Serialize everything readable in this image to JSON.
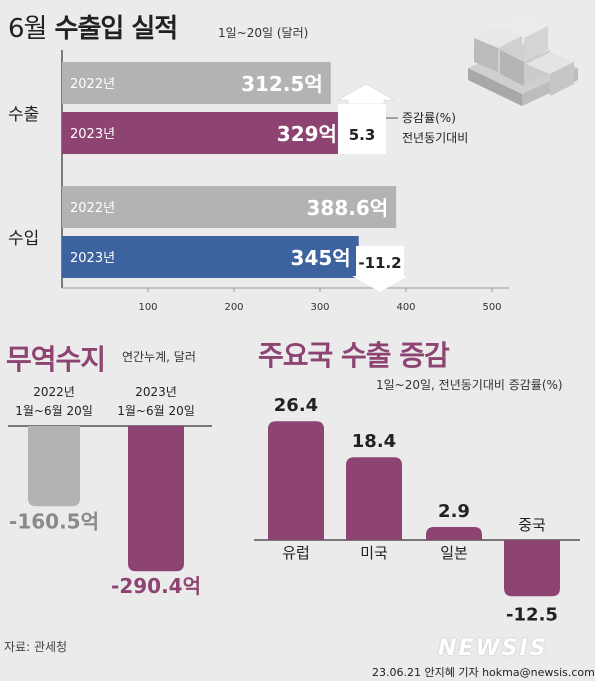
{
  "title": {
    "month": "6월",
    "main": "수출입 실적"
  },
  "subtitle": "1일~20일 (달러)",
  "colors": {
    "gray": "#b3b3b3",
    "purple": "#8e4472",
    "blue": "#3c62a0",
    "title_accent": "#8e4472"
  },
  "chart_data": [
    {
      "type": "bar",
      "orientation": "horizontal",
      "categories": [
        "수출",
        "수입"
      ],
      "series": [
        {
          "name": "2022년",
          "values": [
            312.5,
            388.6
          ]
        },
        {
          "name": "2023년",
          "values": [
            329,
            345
          ]
        }
      ],
      "value_labels": {
        "수출": [
          "312.5억",
          "329억"
        ],
        "수입": [
          "388.6억",
          "345억"
        ]
      },
      "xticks": [
        100,
        200,
        300,
        400,
        500
      ],
      "xlim": [
        0,
        520
      ],
      "change_label": "증감률(%)\n전년동기대비",
      "changes": {
        "수출": 5.3,
        "수입": -11.2
      },
      "change_text": [
        "5.3",
        "-11.2"
      ],
      "title": "6월 수출입 실적",
      "subtitle": "1일~20일 (달러)"
    },
    {
      "type": "bar",
      "title": "무역수지",
      "subtitle": "연간누계, 달러",
      "categories": [
        "2022년\n1월~6월 20일",
        "2023년\n1월~6월 20일"
      ],
      "values": [
        -160.5,
        -290.4
      ],
      "value_labels": [
        "-160.5억",
        "-290.4억"
      ]
    },
    {
      "type": "bar",
      "title": "주요국 수출 증감",
      "subtitle": "1일~20일, 전년동기대비 증감률(%)",
      "categories": [
        "유럽",
        "미국",
        "일본",
        "중국"
      ],
      "values": [
        26.4,
        18.4,
        2.9,
        -12.5
      ],
      "value_labels": [
        "26.4",
        "18.4",
        "2.9",
        "-12.5"
      ]
    }
  ],
  "labels": {
    "year_2022": "2022년",
    "year_2023": "2023년",
    "export": "수출",
    "import": "수입",
    "change_line1": "증감률(%)",
    "change_line2": "전년동기대비",
    "trade_title": "무역수지",
    "trade_sub": "연간누계, 달러",
    "country_title": "주요국 수출 증감",
    "country_sub": "1일~20일, 전년동기대비 증감률(%)",
    "source": "자료: 관세청",
    "credit": "23.06.21 안지혜 기자 hokma@newsis.com",
    "brand": "NEWSIS"
  }
}
